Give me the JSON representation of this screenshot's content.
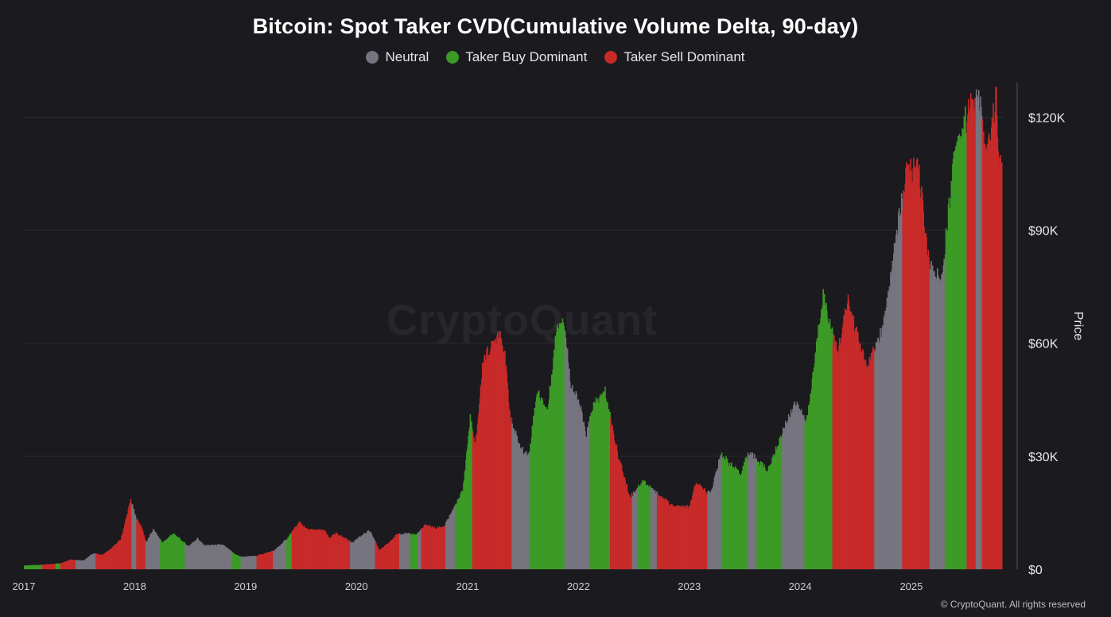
{
  "title": "Bitcoin: Spot Taker CVD(Cumulative Volume Delta, 90-day)",
  "legend": [
    {
      "label": "Neutral",
      "color": "#76757f"
    },
    {
      "label": "Taker Buy Dominant",
      "color": "#3c9b26"
    },
    {
      "label": "Taker Sell Dominant",
      "color": "#c72a29"
    }
  ],
  "watermark": "CryptoQuant",
  "copyright": "© CryptoQuant. All rights reserved",
  "chart_data": {
    "type": "area",
    "ylabel": "Price",
    "ylim": [
      0,
      130000
    ],
    "yticks": [
      0,
      30000,
      60000,
      90000,
      120000
    ],
    "ytick_labels": [
      "$0",
      "$30K",
      "$60K",
      "$90K",
      "$120K"
    ],
    "xlim": [
      "2017-01-01",
      "2025-11-01"
    ],
    "xtick_labels": [
      "2017",
      "2018",
      "2019",
      "2020",
      "2021",
      "2022",
      "2023",
      "2024",
      "2025"
    ],
    "grid": true,
    "price_series": [
      [
        "2017-01-01",
        1000
      ],
      [
        "2017-03-01",
        1200
      ],
      [
        "2017-05-01",
        1600
      ],
      [
        "2017-06-01",
        2600
      ],
      [
        "2017-07-15",
        2300
      ],
      [
        "2017-08-15",
        4200
      ],
      [
        "2017-09-15",
        3800
      ],
      [
        "2017-10-15",
        5500
      ],
      [
        "2017-11-15",
        8000
      ],
      [
        "2017-12-10",
        16000
      ],
      [
        "2017-12-17",
        18500
      ],
      [
        "2018-01-01",
        14000
      ],
      [
        "2018-01-20",
        11500
      ],
      [
        "2018-02-06",
        7000
      ],
      [
        "2018-03-01",
        10500
      ],
      [
        "2018-04-01",
        7000
      ],
      [
        "2018-05-05",
        9500
      ],
      [
        "2018-06-25",
        6100
      ],
      [
        "2018-07-25",
        8200
      ],
      [
        "2018-08-15",
        6300
      ],
      [
        "2018-10-15",
        6500
      ],
      [
        "2018-11-25",
        4000
      ],
      [
        "2018-12-15",
        3300
      ],
      [
        "2019-02-01",
        3500
      ],
      [
        "2019-04-05",
        5000
      ],
      [
        "2019-05-15",
        8000
      ],
      [
        "2019-06-26",
        12500
      ],
      [
        "2019-07-20",
        10500
      ],
      [
        "2019-09-15",
        10300
      ],
      [
        "2019-10-01",
        8300
      ],
      [
        "2019-10-26",
        9500
      ],
      [
        "2019-12-15",
        7100
      ],
      [
        "2020-02-12",
        10300
      ],
      [
        "2020-03-15",
        5000
      ],
      [
        "2020-04-15",
        7000
      ],
      [
        "2020-05-15",
        9500
      ],
      [
        "2020-07-15",
        9200
      ],
      [
        "2020-08-15",
        11800
      ],
      [
        "2020-09-15",
        10800
      ],
      [
        "2020-10-15",
        11500
      ],
      [
        "2020-11-15",
        16000
      ],
      [
        "2020-12-15",
        21000
      ],
      [
        "2021-01-08",
        40000
      ],
      [
        "2021-01-25",
        32000
      ],
      [
        "2021-02-20",
        56000
      ],
      [
        "2021-03-15",
        58000
      ],
      [
        "2021-04-14",
        63500
      ],
      [
        "2021-05-01",
        57000
      ],
      [
        "2021-05-20",
        40000
      ],
      [
        "2021-06-22",
        32000
      ],
      [
        "2021-07-20",
        30000
      ],
      [
        "2021-08-15",
        47000
      ],
      [
        "2021-09-20",
        42000
      ],
      [
        "2021-10-20",
        64000
      ],
      [
        "2021-11-10",
        67000
      ],
      [
        "2021-12-05",
        49000
      ],
      [
        "2022-01-05",
        43000
      ],
      [
        "2022-01-24",
        35000
      ],
      [
        "2022-02-15",
        43000
      ],
      [
        "2022-03-28",
        47000
      ],
      [
        "2022-05-10",
        30000
      ],
      [
        "2022-06-18",
        19000
      ],
      [
        "2022-07-30",
        23500
      ],
      [
        "2022-09-15",
        20000
      ],
      [
        "2022-11-09",
        16500
      ],
      [
        "2022-12-31",
        16500
      ],
      [
        "2023-01-20",
        22500
      ],
      [
        "2023-03-10",
        20000
      ],
      [
        "2023-04-14",
        30500
      ],
      [
        "2023-06-15",
        25000
      ],
      [
        "2023-07-15",
        31000
      ],
      [
        "2023-09-15",
        26000
      ],
      [
        "2023-10-25",
        34500
      ],
      [
        "2023-12-10",
        44000
      ],
      [
        "2024-01-23",
        39500
      ],
      [
        "2024-03-14",
        73000
      ],
      [
        "2024-05-01",
        57000
      ],
      [
        "2024-06-05",
        71000
      ],
      [
        "2024-08-05",
        53000
      ],
      [
        "2024-09-30",
        64000
      ],
      [
        "2024-11-12",
        89000
      ],
      [
        "2024-12-17",
        106000
      ],
      [
        "2025-01-22",
        106000
      ],
      [
        "2025-02-28",
        80000
      ],
      [
        "2025-04-08",
        76000
      ],
      [
        "2025-05-22",
        111500
      ],
      [
        "2025-07-14",
        122500
      ],
      [
        "2025-08-14",
        124000
      ],
      [
        "2025-09-01",
        108000
      ],
      [
        "2025-10-06",
        125000
      ],
      [
        "2025-10-17",
        105000
      ],
      [
        "2025-10-25",
        112000
      ]
    ],
    "regime_series": [
      [
        "2017-01-01",
        "Taker Buy Dominant"
      ],
      [
        "2017-03-01",
        "Taker Sell Dominant"
      ],
      [
        "2017-04-15",
        "Taker Buy Dominant"
      ],
      [
        "2017-05-01",
        "Taker Sell Dominant"
      ],
      [
        "2017-06-20",
        "Neutral"
      ],
      [
        "2017-08-25",
        "Taker Sell Dominant"
      ],
      [
        "2017-11-01",
        "Taker Sell Dominant"
      ],
      [
        "2017-12-20",
        "Neutral"
      ],
      [
        "2018-01-05",
        "Taker Sell Dominant"
      ],
      [
        "2018-02-05",
        "Neutral"
      ],
      [
        "2018-03-25",
        "Taker Buy Dominant"
      ],
      [
        "2018-06-15",
        "Neutral"
      ],
      [
        "2018-11-15",
        "Taker Buy Dominant"
      ],
      [
        "2018-12-15",
        "Neutral"
      ],
      [
        "2019-02-05",
        "Taker Sell Dominant"
      ],
      [
        "2019-04-01",
        "Neutral"
      ],
      [
        "2019-05-15",
        "Taker Buy Dominant"
      ],
      [
        "2019-06-01",
        "Taker Sell Dominant"
      ],
      [
        "2019-12-10",
        "Neutral"
      ],
      [
        "2020-03-01",
        "Taker Sell Dominant"
      ],
      [
        "2020-05-20",
        "Neutral"
      ],
      [
        "2020-06-25",
        "Taker Buy Dominant"
      ],
      [
        "2020-07-20",
        "Neutral"
      ],
      [
        "2020-08-01",
        "Taker Sell Dominant"
      ],
      [
        "2020-10-20",
        "Neutral"
      ],
      [
        "2020-11-20",
        "Taker Buy Dominant"
      ],
      [
        "2021-01-15",
        "Taker Sell Dominant"
      ],
      [
        "2021-05-25",
        "Neutral"
      ],
      [
        "2021-07-25",
        "Taker Buy Dominant"
      ],
      [
        "2021-11-15",
        "Neutral"
      ],
      [
        "2022-02-05",
        "Taker Buy Dominant"
      ],
      [
        "2022-04-15",
        "Taker Sell Dominant"
      ],
      [
        "2022-06-25",
        "Neutral"
      ],
      [
        "2022-07-15",
        "Taker Buy Dominant"
      ],
      [
        "2022-08-25",
        "Neutral"
      ],
      [
        "2022-09-15",
        "Taker Sell Dominant"
      ],
      [
        "2023-03-01",
        "Neutral"
      ],
      [
        "2023-04-15",
        "Taker Buy Dominant"
      ],
      [
        "2023-07-10",
        "Neutral"
      ],
      [
        "2023-08-10",
        "Taker Buy Dominant"
      ],
      [
        "2023-11-01",
        "Neutral"
      ],
      [
        "2024-01-15",
        "Taker Buy Dominant"
      ],
      [
        "2024-04-15",
        "Taker Sell Dominant"
      ],
      [
        "2024-09-01",
        "Neutral"
      ],
      [
        "2024-12-01",
        "Taker Sell Dominant"
      ],
      [
        "2025-03-01",
        "Neutral"
      ],
      [
        "2025-04-20",
        "Taker Buy Dominant"
      ],
      [
        "2025-07-01",
        "Taker Sell Dominant"
      ],
      [
        "2025-08-01",
        "Neutral"
      ],
      [
        "2025-08-20",
        "Taker Sell Dominant"
      ]
    ]
  }
}
